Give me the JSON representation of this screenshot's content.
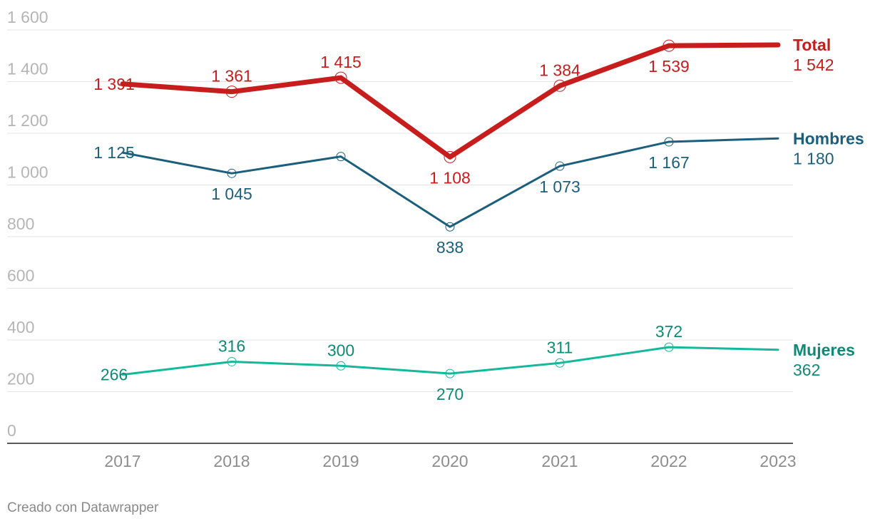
{
  "chart_data": {
    "type": "line",
    "x": [
      "2017",
      "2018",
      "2019",
      "2020",
      "2021",
      "2022",
      "2023"
    ],
    "ylim": [
      0,
      1600
    ],
    "yticks": [
      0,
      200,
      400,
      600,
      800,
      1000,
      1200,
      1400,
      1600
    ],
    "ytick_labels": [
      "0",
      "200",
      "400",
      "600",
      "800",
      "1 000",
      "1 200",
      "1 400",
      "1 600"
    ],
    "grid": true,
    "legend": "right (direct labels at line ends)",
    "series": [
      {
        "name": "Total",
        "color": "#c71e1d",
        "values": [
          1391,
          1361,
          1415,
          1108,
          1384,
          1539,
          1542
        ],
        "labels": [
          "1 391",
          "1 361",
          "1 415",
          "1 108",
          "1 384",
          "1 539",
          "1 542"
        ]
      },
      {
        "name": "Hombres",
        "color": "#1b5f7c",
        "values": [
          1125,
          1045,
          1110,
          838,
          1073,
          1167,
          1180
        ],
        "labels": [
          "1 125",
          "1 045",
          "",
          "838",
          "1 073",
          "1 167",
          "1 180"
        ]
      },
      {
        "name": "Mujeres",
        "color": "#15b89b",
        "label_color": "#0f8a76",
        "values": [
          266,
          316,
          300,
          270,
          311,
          372,
          362
        ],
        "labels": [
          "266",
          "316",
          "300",
          "270",
          "311",
          "372",
          "362"
        ]
      }
    ]
  },
  "footer": {
    "credit": "Creado con Datawrapper"
  }
}
